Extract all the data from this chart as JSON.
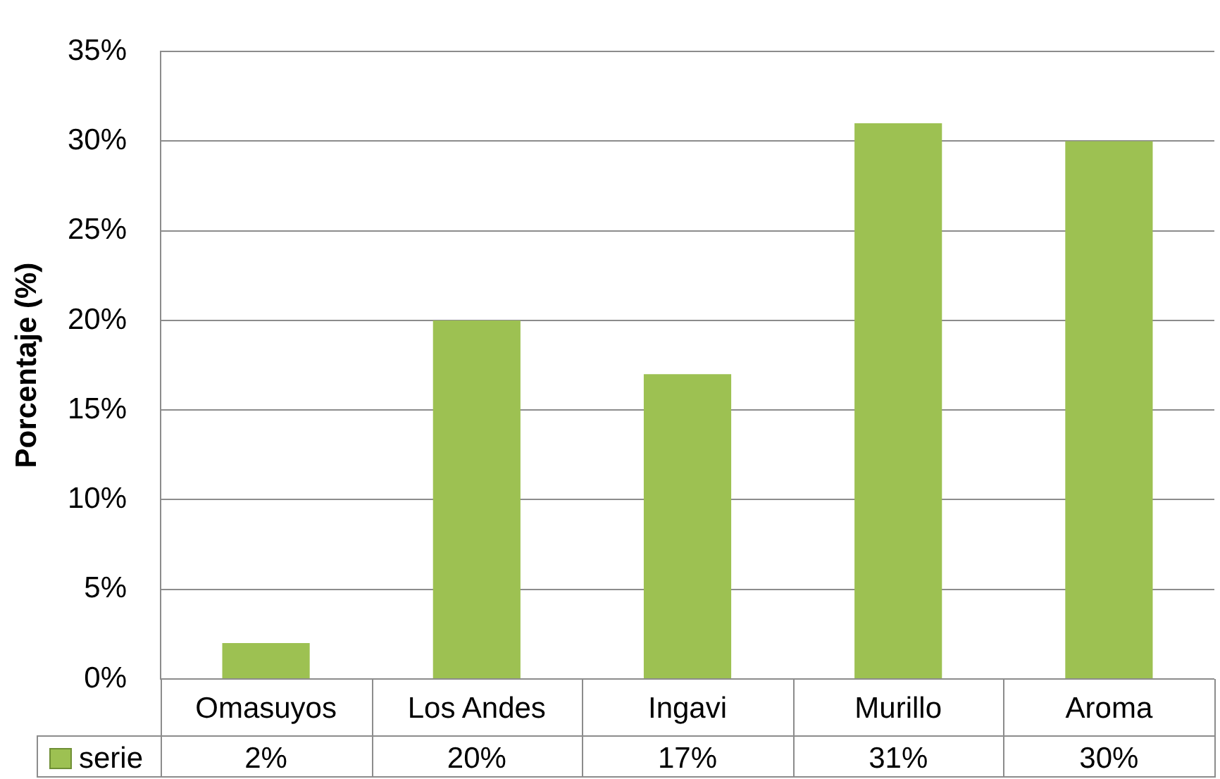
{
  "chart_data": {
    "type": "bar",
    "ylabel": "Porcentaje (%)",
    "categories": [
      "Omasuyos",
      "Los Andes",
      "Ingavi",
      "Murillo",
      "Aroma"
    ],
    "series": [
      {
        "name": "serie",
        "color": "#9dc152",
        "values": [
          2,
          20,
          17,
          31,
          30
        ],
        "value_labels": [
          "2%",
          "20%",
          "17%",
          "31%",
          "30%"
        ]
      }
    ],
    "ylim": [
      0,
      35
    ],
    "yticks": [
      {
        "value": 0,
        "label": "0%"
      },
      {
        "value": 5,
        "label": "5%"
      },
      {
        "value": 10,
        "label": "10%"
      },
      {
        "value": 15,
        "label": "15%"
      },
      {
        "value": 20,
        "label": "20%"
      },
      {
        "value": 25,
        "label": "25%"
      },
      {
        "value": 30,
        "label": "30%"
      },
      {
        "value": 35,
        "label": "35%"
      }
    ],
    "grid": "y",
    "legend": "bottom"
  }
}
